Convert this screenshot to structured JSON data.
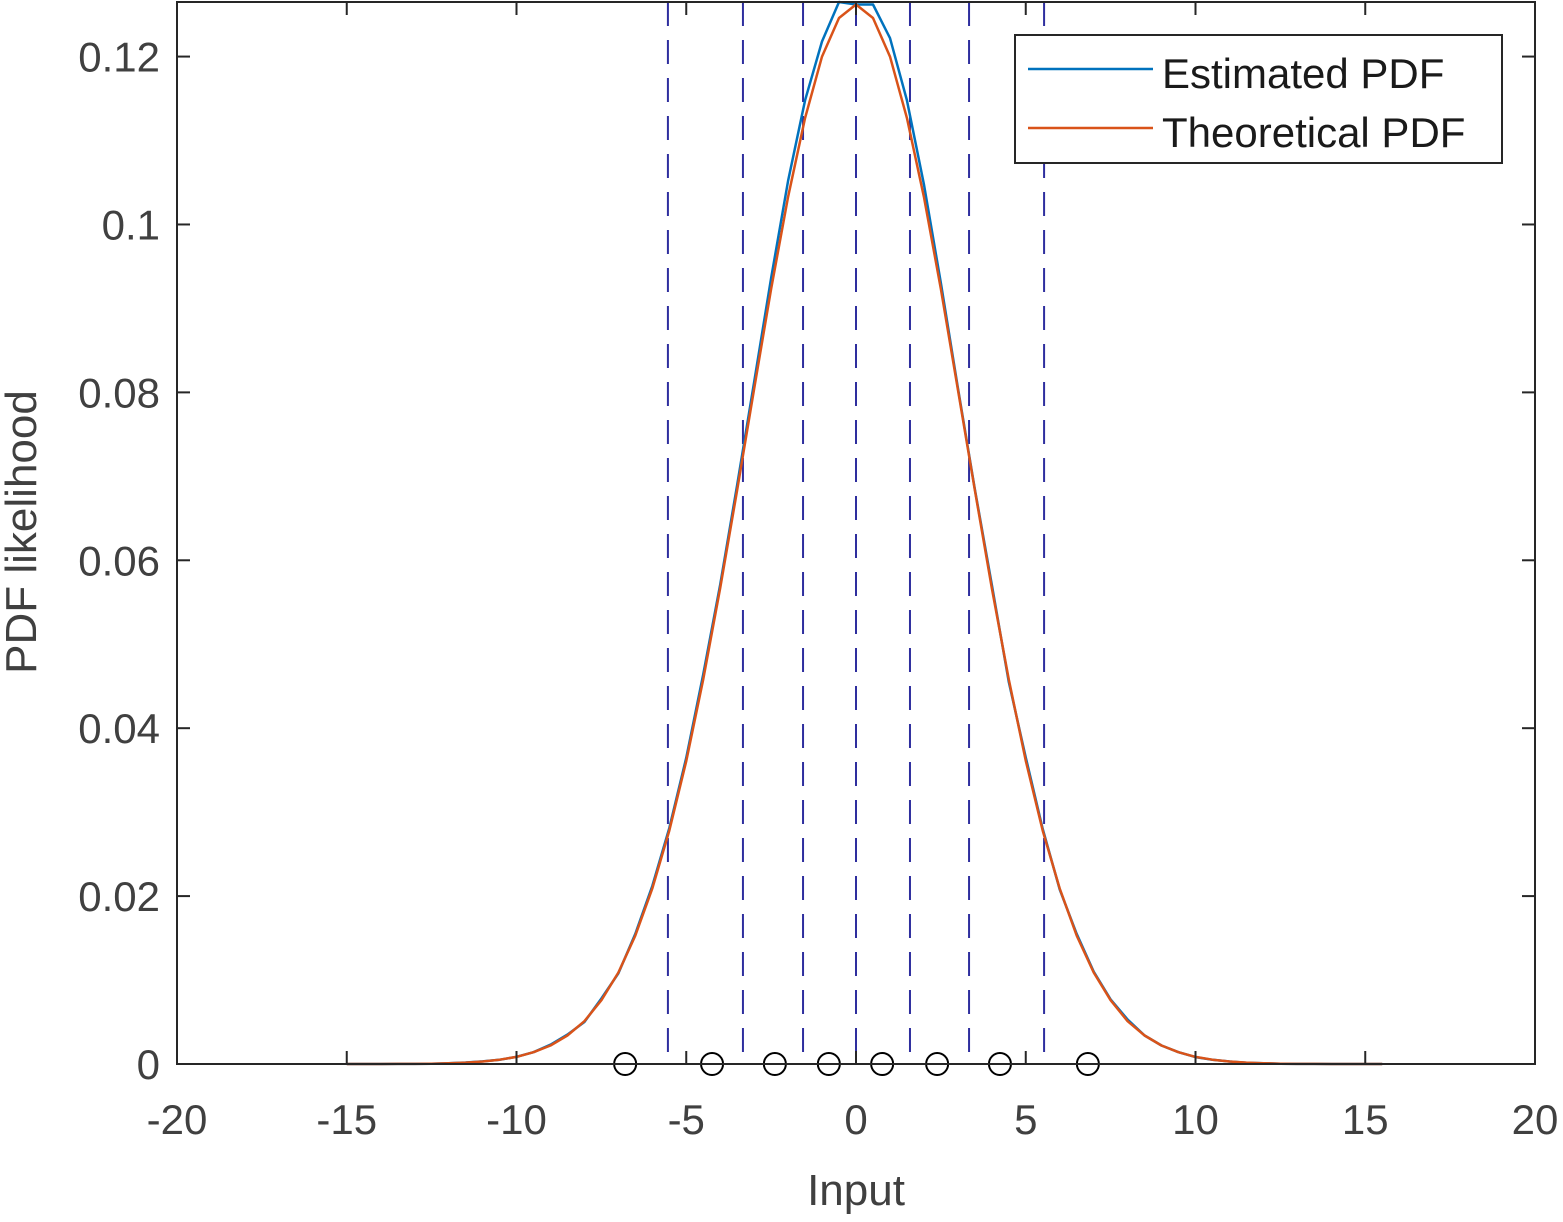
{
  "chart_data": {
    "type": "line",
    "title": "",
    "xlabel": "Input",
    "ylabel": "PDF likelihood",
    "xlim": [
      -20,
      20
    ],
    "ylim": [
      0,
      0.1265
    ],
    "xticks": [
      "-20",
      "-15",
      "-10",
      "-5",
      "0",
      "5",
      "10",
      "15",
      "20"
    ],
    "xtick_values": [
      -20,
      -15,
      -10,
      -5,
      0,
      5,
      10,
      15,
      20
    ],
    "yticks": [
      "0",
      "0.02",
      "0.04",
      "0.06",
      "0.08",
      "0.1",
      "0.12"
    ],
    "ytick_values": [
      0,
      0.02,
      0.04,
      0.06,
      0.08,
      0.1,
      0.12
    ],
    "grid": false,
    "legend_position": "top-right",
    "x": [
      -15,
      -14.5,
      -14,
      -13.5,
      -13,
      -12.5,
      -12,
      -11.5,
      -11,
      -10.5,
      -10,
      -9.5,
      -9,
      -8.5,
      -8,
      -7.5,
      -7,
      -6.5,
      -6,
      -5.5,
      -5,
      -4.5,
      -4,
      -3.5,
      -3,
      -2.5,
      -2,
      -1.5,
      -1,
      -0.5,
      0,
      0.5,
      1,
      1.5,
      2,
      2.5,
      3,
      3.5,
      4,
      4.5,
      5,
      5.5,
      6,
      6.5,
      7,
      7.5,
      8,
      8.5,
      9,
      9.5,
      10,
      10.5,
      11,
      11.5,
      12,
      12.5,
      13,
      13.5,
      14,
      14.5,
      15,
      15.5
    ],
    "series": [
      {
        "name": "Estimated PDF",
        "color": "#0072BD",
        "values": [
          0,
          0,
          0,
          1e-05,
          1e-05,
          3e-05,
          9e-05,
          0.00018,
          0.00031,
          0.0005,
          0.00086,
          0.0014,
          0.0023,
          0.0035,
          0.005,
          0.0078,
          0.0108,
          0.0155,
          0.0212,
          0.0281,
          0.0365,
          0.0464,
          0.0571,
          0.069,
          0.0812,
          0.0936,
          0.1052,
          0.1148,
          0.1218,
          0.1265,
          0.1262,
          0.1262,
          0.1222,
          0.1148,
          0.1048,
          0.093,
          0.0806,
          0.0685,
          0.0571,
          0.0455,
          0.0365,
          0.028,
          0.0208,
          0.0155,
          0.011,
          0.0077,
          0.0053,
          0.0034,
          0.0022,
          0.0014,
          0.00082,
          0.0005,
          0.0003,
          0.00016,
          9e-05,
          3e-05,
          1e-05,
          1e-05,
          0,
          0,
          0,
          0
        ]
      },
      {
        "name": "Theoretical PDF",
        "color": "#D95319",
        "values": [
          0,
          0,
          0,
          1e-05,
          1e-05,
          3e-05,
          9e-05,
          0.00017,
          0.0003,
          0.00051,
          0.00085,
          0.0014,
          0.0022,
          0.0034,
          0.0051,
          0.0076,
          0.0109,
          0.0153,
          0.0209,
          0.0278,
          0.0361,
          0.0458,
          0.0567,
          0.0684,
          0.0804,
          0.0923,
          0.1033,
          0.1127,
          0.12,
          0.1246,
          0.1262,
          0.1246,
          0.12,
          0.1127,
          0.1033,
          0.0923,
          0.0804,
          0.0684,
          0.0567,
          0.0458,
          0.0361,
          0.0278,
          0.0209,
          0.0153,
          0.0109,
          0.0076,
          0.0051,
          0.0034,
          0.0022,
          0.0014,
          0.00085,
          0.00051,
          0.0003,
          0.00017,
          9e-05,
          3e-05,
          1e-05,
          1e-05,
          0,
          0,
          0,
          0
        ]
      }
    ],
    "decision_boundaries": [
      -5.54,
      -3.33,
      -1.56,
      0,
      1.59,
      3.33,
      5.54
    ],
    "boundary_color": "#2E2E9E",
    "reconstruction_levels": [
      -6.8,
      -4.24,
      -2.39,
      -0.8,
      0.77,
      2.39,
      4.24,
      6.83
    ]
  }
}
